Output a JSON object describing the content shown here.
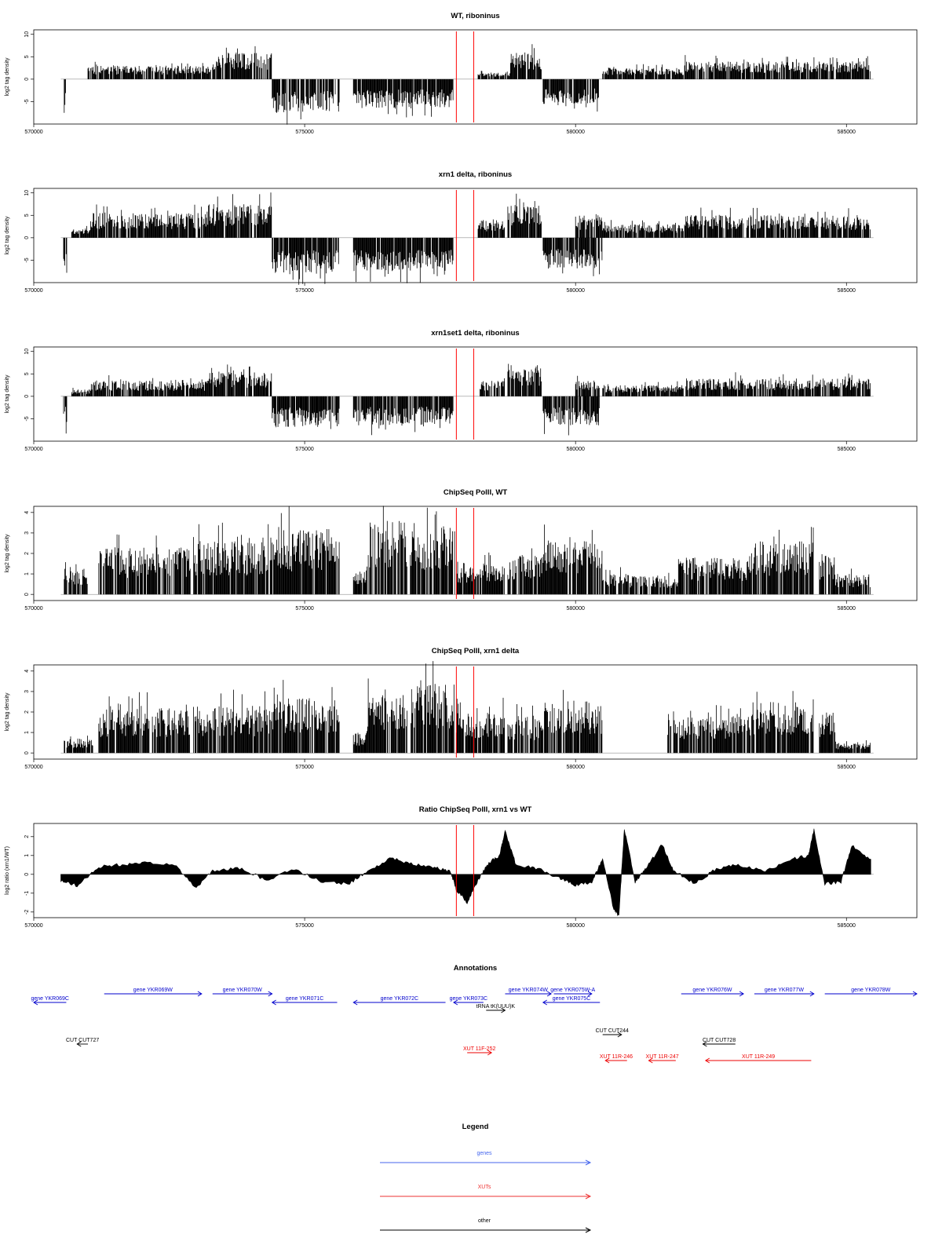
{
  "chart_data": [
    {
      "type": "bar",
      "title": "WT, riboninus",
      "ylabel": "log2 tag density",
      "xlim": [
        570000,
        586300
      ],
      "ylim": [
        -10,
        11
      ],
      "yticks": [
        "10",
        "5",
        "0",
        "-5"
      ],
      "xticks": [
        "570000",
        "575000",
        "580000",
        "585000"
      ],
      "xtick_values": [
        570000,
        575000,
        580000,
        585000
      ],
      "markers": [
        577800,
        578120
      ],
      "segments": [
        {
          "x": [
            570550,
            570600
          ],
          "y": -6.5
        },
        {
          "x": [
            571000,
            573300
          ],
          "y": 3
        },
        {
          "x": [
            573300,
            574400
          ],
          "y": 6
        },
        {
          "x": [
            574400,
            575650
          ],
          "y": -7.5
        },
        {
          "x": [
            575900,
            577750
          ],
          "y": -6.5
        },
        {
          "x": [
            578200,
            578800
          ],
          "y": 1.5
        },
        {
          "x": [
            578800,
            579380
          ],
          "y": 6
        },
        {
          "x": [
            579400,
            580450
          ],
          "y": -5.5
        },
        {
          "x": [
            580500,
            582000
          ],
          "y": 2.5
        },
        {
          "x": [
            582000,
            585450
          ],
          "y": 4
        }
      ]
    },
    {
      "type": "bar",
      "title": "xrn1 delta, riboninus",
      "ylabel": "log2 tag density",
      "xlim": [
        570000,
        586300
      ],
      "ylim": [
        -10,
        11
      ],
      "yticks": [
        "10",
        "5",
        "0",
        "-5"
      ],
      "xticks": [
        "570000",
        "575000",
        "580000",
        "585000"
      ],
      "xtick_values": [
        570000,
        575000,
        580000,
        585000
      ],
      "markers": [
        577800,
        578120
      ],
      "segments": [
        {
          "x": [
            570550,
            570620
          ],
          "y": -8.5
        },
        {
          "x": [
            570700,
            571050
          ],
          "y": 2
        },
        {
          "x": [
            571050,
            573200
          ],
          "y": 5.5
        },
        {
          "x": [
            573200,
            574400
          ],
          "y": 7.5
        },
        {
          "x": [
            574400,
            575650
          ],
          "y": -8
        },
        {
          "x": [
            575900,
            577750
          ],
          "y": -7.5
        },
        {
          "x": [
            578200,
            578700
          ],
          "y": 4
        },
        {
          "x": [
            578750,
            579380
          ],
          "y": 7.5
        },
        {
          "x": [
            579400,
            580500
          ],
          "y": -7
        },
        {
          "x": [
            580000,
            580500
          ],
          "y": 5
        },
        {
          "x": [
            580500,
            582000
          ],
          "y": 3
        },
        {
          "x": [
            582000,
            585450
          ],
          "y": 5
        }
      ]
    },
    {
      "type": "bar",
      "title": "xrn1set1 delta, riboninus",
      "ylabel": "log2 tag density",
      "xlim": [
        570000,
        586300
      ],
      "ylim": [
        -10,
        11
      ],
      "yticks": [
        "10",
        "5",
        "0",
        "-5"
      ],
      "xticks": [
        "570000",
        "575000",
        "580000",
        "585000"
      ],
      "xtick_values": [
        570000,
        575000,
        580000,
        585000
      ],
      "markers": [
        577800,
        578120
      ],
      "segments": [
        {
          "x": [
            570550,
            570620
          ],
          "y": -6.5
        },
        {
          "x": [
            570700,
            571050
          ],
          "y": 1.5
        },
        {
          "x": [
            571050,
            573200
          ],
          "y": 3.5
        },
        {
          "x": [
            573200,
            574400
          ],
          "y": 5.5
        },
        {
          "x": [
            574400,
            575650
          ],
          "y": -7
        },
        {
          "x": [
            575900,
            577750
          ],
          "y": -6.5
        },
        {
          "x": [
            578200,
            578700
          ],
          "y": 3.5
        },
        {
          "x": [
            578750,
            579380
          ],
          "y": 6
        },
        {
          "x": [
            579400,
            580450
          ],
          "y": -6.5
        },
        {
          "x": [
            580000,
            580450
          ],
          "y": 3.5
        },
        {
          "x": [
            580500,
            582000
          ],
          "y": 2.5
        },
        {
          "x": [
            582000,
            585450
          ],
          "y": 4
        }
      ]
    },
    {
      "type": "bar",
      "title": "ChipSeq PolII, WT",
      "ylabel": "log2 tag density",
      "xlim": [
        570000,
        586300
      ],
      "ylim": [
        -0.3,
        4.3
      ],
      "yticks": [
        "4",
        "3",
        "2",
        "1",
        "0"
      ],
      "xticks": [
        "570000",
        "575000",
        "580000",
        "585000"
      ],
      "xtick_values": [
        570000,
        575000,
        580000,
        585000
      ],
      "markers": [
        577800,
        578120
      ],
      "segments": [
        {
          "x": [
            570550,
            571000
          ],
          "y": 1.3
        },
        {
          "x": [
            571200,
            572900
          ],
          "y": 2.3
        },
        {
          "x": [
            572950,
            574400
          ],
          "y": 2.6
        },
        {
          "x": [
            574400,
            575650
          ],
          "y": 3.2
        },
        {
          "x": [
            575900,
            576150
          ],
          "y": 1.2
        },
        {
          "x": [
            576150,
            576900
          ],
          "y": 3.6
        },
        {
          "x": [
            576950,
            577780
          ],
          "y": 3.4
        },
        {
          "x": [
            577800,
            578700
          ],
          "y": 1.6
        },
        {
          "x": [
            578750,
            579400
          ],
          "y": 2.0
        },
        {
          "x": [
            579400,
            580500
          ],
          "y": 2.7
        },
        {
          "x": [
            580500,
            581000
          ],
          "y": 1.0
        },
        {
          "x": [
            581000,
            581900
          ],
          "y": 0.9
        },
        {
          "x": [
            581900,
            583250
          ],
          "y": 1.8
        },
        {
          "x": [
            583250,
            584400
          ],
          "y": 2.6
        },
        {
          "x": [
            584500,
            584800
          ],
          "y": 2.0
        },
        {
          "x": [
            584800,
            585450
          ],
          "y": 1.0
        }
      ]
    },
    {
      "type": "bar",
      "title": "ChipSeq PolII, xrn1 delta",
      "ylabel": "log2 tag density",
      "xlim": [
        570000,
        586300
      ],
      "ylim": [
        -0.3,
        4.3
      ],
      "yticks": [
        "4",
        "3",
        "2",
        "1",
        "0"
      ],
      "xticks": [
        "570000",
        "575000",
        "580000",
        "585000"
      ],
      "xtick_values": [
        570000,
        575000,
        580000,
        585000
      ],
      "markers": [
        577800,
        578120
      ],
      "segments": [
        {
          "x": [
            570550,
            571100
          ],
          "y": 0.7
        },
        {
          "x": [
            571200,
            572900
          ],
          "y": 2.2
        },
        {
          "x": [
            572950,
            574400
          ],
          "y": 2.3
        },
        {
          "x": [
            574400,
            575650
          ],
          "y": 2.7
        },
        {
          "x": [
            575900,
            576150
          ],
          "y": 1.0
        },
        {
          "x": [
            576150,
            576900
          ],
          "y": 3.0
        },
        {
          "x": [
            576950,
            577780
          ],
          "y": 3.4
        },
        {
          "x": [
            577800,
            578700
          ],
          "y": 2.0
        },
        {
          "x": [
            578750,
            579400
          ],
          "y": 1.8
        },
        {
          "x": [
            579400,
            580500
          ],
          "y": 2.6
        },
        {
          "x": [
            581700,
            583250
          ],
          "y": 1.8
        },
        {
          "x": [
            583250,
            584400
          ],
          "y": 2.5
        },
        {
          "x": [
            584500,
            584800
          ],
          "y": 2.0
        },
        {
          "x": [
            584800,
            585450
          ],
          "y": 0.5
        }
      ]
    },
    {
      "type": "area",
      "title": "Ratio ChipSeq PolII, xrn1 vs WT",
      "ylabel": "log2 ratio (xrn1/WT)",
      "xlim": [
        570000,
        586300
      ],
      "ylim": [
        -2.3,
        2.7
      ],
      "yticks": [
        "2",
        "1",
        "0",
        "-1",
        "-2"
      ],
      "xticks": [
        "570000",
        "575000",
        "580000",
        "585000"
      ],
      "xtick_values": [
        570000,
        575000,
        580000,
        585000
      ],
      "markers": [
        577800,
        578120
      ],
      "x": [
        570500,
        570800,
        571200,
        571600,
        572000,
        572600,
        573000,
        573300,
        573800,
        574300,
        574800,
        575300,
        575800,
        576200,
        576600,
        577000,
        577400,
        577700,
        577800,
        578000,
        578200,
        578400,
        578600,
        578700,
        578900,
        579300,
        579700,
        580000,
        580300,
        580500,
        580700,
        580800,
        580900,
        581100,
        581300,
        581600,
        581800,
        582200,
        582600,
        583000,
        583500,
        584000,
        584300,
        584400,
        584600,
        584900,
        585100,
        585450
      ],
      "y": [
        -0.3,
        -0.6,
        0.4,
        0.5,
        0.6,
        0.5,
        -0.7,
        0.2,
        0.3,
        -0.3,
        0.3,
        -0.4,
        -0.5,
        0.2,
        0.9,
        0.5,
        0.4,
        0.1,
        -0.8,
        -1.5,
        -0.3,
        0.6,
        1.0,
        2.3,
        0.5,
        0.3,
        -0.2,
        -0.6,
        -0.4,
        0.8,
        -1.8,
        -2.2,
        2.4,
        -0.4,
        0.3,
        1.6,
        0.2,
        -0.5,
        0.3,
        0.5,
        0.2,
        0.8,
        1.0,
        2.4,
        -0.5,
        -0.4,
        1.5,
        0.8
      ]
    }
  ],
  "annotations": {
    "title": "Annotations",
    "xlim": [
      570000,
      586300
    ],
    "items": [
      {
        "label": "gene YKR069C",
        "x": [
          570000,
          570600
        ],
        "y": 1,
        "dir": "left",
        "color": "blue"
      },
      {
        "label": "gene YKR069W",
        "x": [
          571300,
          573100
        ],
        "y": 0,
        "dir": "right",
        "color": "blue"
      },
      {
        "label": "gene YKR070W",
        "x": [
          573300,
          574400
        ],
        "y": 0,
        "dir": "right",
        "color": "blue"
      },
      {
        "label": "gene YKR071C",
        "x": [
          574400,
          575600
        ],
        "y": 1,
        "dir": "left",
        "color": "blue"
      },
      {
        "label": "gene YKR072C",
        "x": [
          575900,
          577600
        ],
        "y": 1,
        "dir": "left",
        "color": "blue"
      },
      {
        "label": "gene YKR073C",
        "x": [
          577750,
          578300
        ],
        "y": 1,
        "dir": "left",
        "color": "blue"
      },
      {
        "label": "tRNA tK(UUU)K",
        "x": [
          578350,
          578700
        ],
        "y": 2,
        "dir": "right",
        "color": "black"
      },
      {
        "label": "gene YKR074W",
        "x": [
          578700,
          579550
        ],
        "y": 0,
        "dir": "right",
        "color": "blue"
      },
      {
        "label": "gene YKR075W-A",
        "x": [
          579600,
          580300
        ],
        "y": 0,
        "dir": "right",
        "color": "blue"
      },
      {
        "label": "gene YKR075C",
        "x": [
          579400,
          580450
        ],
        "y": 1,
        "dir": "left",
        "color": "blue"
      },
      {
        "label": "gene YKR076W",
        "x": [
          581950,
          583100
        ],
        "y": 0,
        "dir": "right",
        "color": "blue"
      },
      {
        "label": "gene YKR077W",
        "x": [
          583300,
          584400
        ],
        "y": 0,
        "dir": "right",
        "color": "blue"
      },
      {
        "label": "gene YKR078W",
        "x": [
          584600,
          586300
        ],
        "y": 0,
        "dir": "right",
        "color": "blue"
      },
      {
        "label": "CUT CUT727",
        "x": [
          570800,
          571000
        ],
        "y": 4,
        "dir": "left",
        "color": "black"
      },
      {
        "label": "CUT CUT244",
        "x": [
          580500,
          580850
        ],
        "y": 3,
        "dir": "right",
        "color": "black"
      },
      {
        "label": "CUT CUT728",
        "x": [
          582350,
          582950
        ],
        "y": 4,
        "dir": "left",
        "color": "black"
      },
      {
        "label": "XUT 11F-252",
        "x": [
          578000,
          578450
        ],
        "y": 5,
        "dir": "right",
        "color": "red"
      },
      {
        "label": "XUT 11R-246",
        "x": [
          580550,
          580950
        ],
        "y": 6,
        "dir": "left",
        "color": "red"
      },
      {
        "label": "XUT 11R-247",
        "x": [
          581350,
          581850
        ],
        "y": 6,
        "dir": "left",
        "color": "red"
      },
      {
        "label": "XUT 11R-249",
        "x": [
          582400,
          584350
        ],
        "y": 6,
        "dir": "left",
        "color": "red"
      }
    ]
  },
  "legend": {
    "title": "Legend",
    "entries": [
      {
        "label": "genes",
        "color": "blue"
      },
      {
        "label": "XUTs",
        "color": "red"
      },
      {
        "label": "other",
        "color": "black"
      }
    ]
  },
  "colors": {
    "signal": "#000000",
    "marker": "#ff0000",
    "gene": "#0000cc",
    "xut": "#ee0000",
    "other": "#000000",
    "legend_gene": "#4466ee",
    "legend_xut": "#ee3333"
  }
}
